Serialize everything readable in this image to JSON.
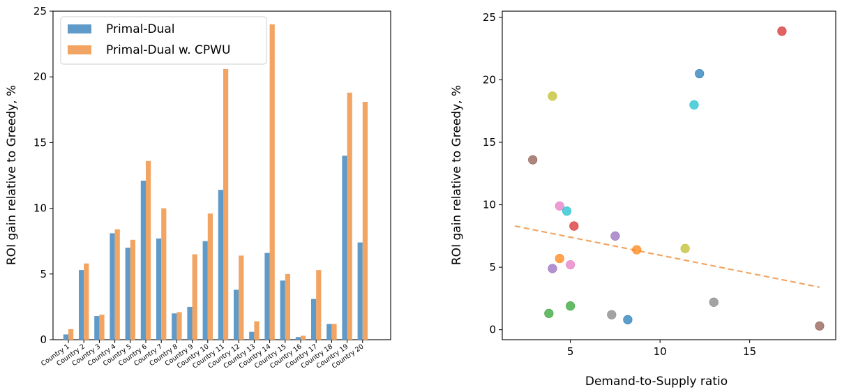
{
  "chart_data": [
    {
      "type": "bar",
      "title": "",
      "xlabel": "",
      "ylabel": "ROI gain relative to Greedy, %",
      "ylim": [
        0,
        25
      ],
      "yticks": [
        0,
        5,
        10,
        15,
        20,
        25
      ],
      "legend_position": "top-left",
      "grid": false,
      "categories": [
        "Country 1",
        "Country 2",
        "Country 3",
        "Country 4",
        "Country 5",
        "Country 6",
        "Country 7",
        "Country 8",
        "Country 9",
        "Country 10",
        "Country 11",
        "Country 12",
        "Country 13",
        "Country 14",
        "Country 15",
        "Country 16",
        "Country 17",
        "Country 18",
        "Country 19",
        "Country 20"
      ],
      "series": [
        {
          "name": "Primal-Dual",
          "color": "#5f9ac8",
          "values": [
            0.4,
            5.3,
            1.8,
            8.1,
            7.0,
            12.1,
            7.7,
            2.0,
            2.5,
            7.5,
            11.4,
            3.8,
            0.6,
            6.6,
            4.5,
            0.2,
            3.1,
            1.2,
            14.0,
            7.4
          ]
        },
        {
          "name": "Primal-Dual w. CPWU",
          "color": "#f2a462",
          "values": [
            0.8,
            5.8,
            1.9,
            8.4,
            7.6,
            13.6,
            10.0,
            2.1,
            6.5,
            9.6,
            20.6,
            6.4,
            1.4,
            24.0,
            5.0,
            0.3,
            5.3,
            1.2,
            18.8,
            18.1
          ]
        }
      ]
    },
    {
      "type": "scatter",
      "title": "",
      "xlabel": "Demand-to-Supply ratio",
      "ylabel": "ROI gain relative to Greedy, %",
      "xlim": [
        1.2,
        19.8
      ],
      "ylim": [
        -0.8,
        25.5
      ],
      "xticks": [
        5,
        10,
        15
      ],
      "yticks": [
        0,
        5,
        10,
        15,
        20,
        25
      ],
      "grid": false,
      "points": [
        {
          "x": 16.8,
          "y": 23.9,
          "color": "#d62728"
        },
        {
          "x": 12.2,
          "y": 20.5,
          "color": "#1f77b4"
        },
        {
          "x": 4.0,
          "y": 18.7,
          "color": "#bcbd22"
        },
        {
          "x": 11.9,
          "y": 18.0,
          "color": "#17becf"
        },
        {
          "x": 2.9,
          "y": 13.6,
          "color": "#8c564b"
        },
        {
          "x": 4.4,
          "y": 9.9,
          "color": "#e377c2"
        },
        {
          "x": 4.8,
          "y": 9.5,
          "color": "#17becf"
        },
        {
          "x": 5.2,
          "y": 8.3,
          "color": "#d62728"
        },
        {
          "x": 7.5,
          "y": 7.5,
          "color": "#9467bd"
        },
        {
          "x": 8.7,
          "y": 6.4,
          "color": "#ff7f0e"
        },
        {
          "x": 11.4,
          "y": 6.5,
          "color": "#bcbd22"
        },
        {
          "x": 4.4,
          "y": 5.7,
          "color": "#ff7f0e"
        },
        {
          "x": 5.0,
          "y": 5.2,
          "color": "#e377c2"
        },
        {
          "x": 4.0,
          "y": 4.9,
          "color": "#9467bd"
        },
        {
          "x": 13.0,
          "y": 2.2,
          "color": "#7f7f7f"
        },
        {
          "x": 5.0,
          "y": 1.9,
          "color": "#2ca02c"
        },
        {
          "x": 3.8,
          "y": 1.3,
          "color": "#2ca02c"
        },
        {
          "x": 7.3,
          "y": 1.2,
          "color": "#7f7f7f"
        },
        {
          "x": 8.2,
          "y": 0.8,
          "color": "#1f77b4"
        },
        {
          "x": 18.9,
          "y": 0.3,
          "color": "#8c564b"
        }
      ],
      "trendline": {
        "x": [
          1.9,
          18.9
        ],
        "y": [
          8.3,
          3.4
        ],
        "color": "#f2a462",
        "style": "dashed"
      }
    }
  ]
}
